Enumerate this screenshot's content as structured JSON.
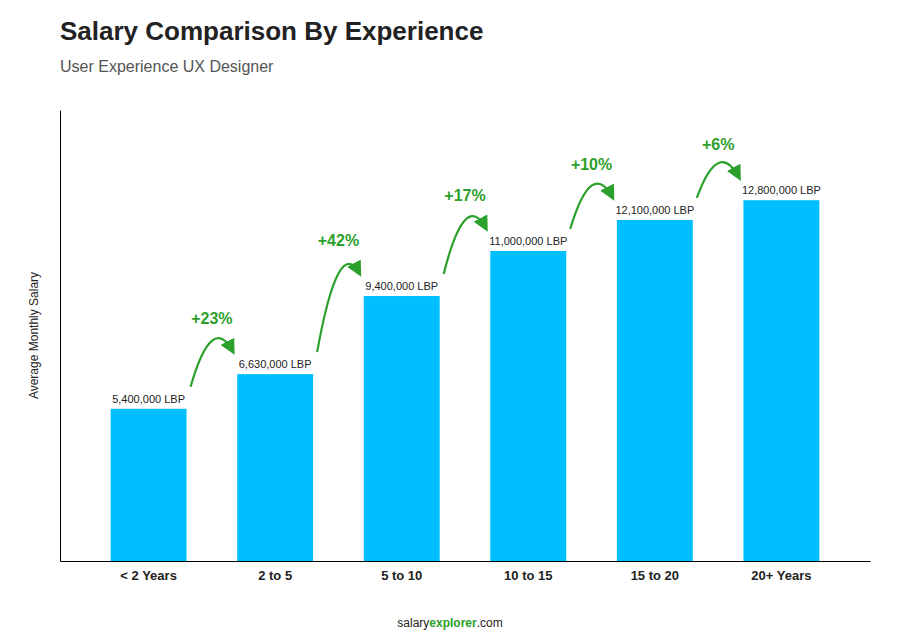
{
  "chart_data": {
    "type": "bar",
    "title": "Salary Comparison By Experience",
    "subtitle": "User Experience UX Designer",
    "ylabel": "Average Monthly Salary",
    "categories": [
      "< 2 Years",
      "2 to 5",
      "5 to 10",
      "10 to 15",
      "15 to 20",
      "20+ Years"
    ],
    "values": [
      5400000,
      6630000,
      9400000,
      11000000,
      12100000,
      12800000
    ],
    "value_labels": [
      "5,400,000 LBP",
      "6,630,000 LBP",
      "9,400,000 LBP",
      "11,000,000 LBP",
      "12,100,000 LBP",
      "12,800,000 LBP"
    ],
    "data_labels": true,
    "color": "#00BFFF",
    "ylim": [
      0,
      16000000
    ],
    "tick_labels": "x",
    "annotations": [
      "+23%",
      "+42%",
      "+17%",
      "+10%",
      "+6%"
    ],
    "footer": [
      "salary",
      "explorer",
      ".com"
    ]
  }
}
